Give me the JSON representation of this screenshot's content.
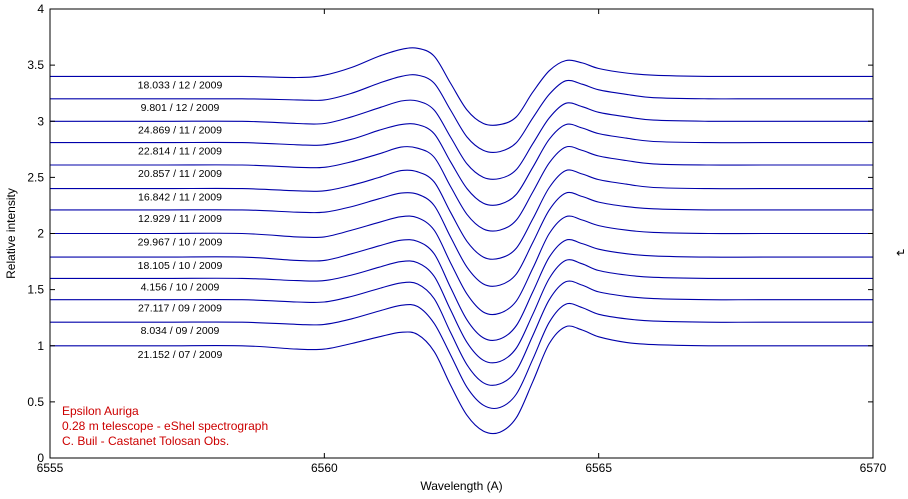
{
  "chart_data": {
    "type": "line",
    "title": "",
    "xlabel": "Wavelength (A)",
    "ylabel": "Relative intensity",
    "xlim": [
      6555,
      6570
    ],
    "ylim": [
      0,
      4
    ],
    "x_ticks": [
      "6555",
      "6560",
      "6565",
      "6570"
    ],
    "y_ticks": [
      "0",
      "0.5",
      "1",
      "1.5",
      "2",
      "2.5",
      "3",
      "3.5",
      "4"
    ],
    "grid": false,
    "line_color": "#0000aa",
    "annotation_color": "#cc0000",
    "annotations": [
      "Epsilon  Auriga",
      "0.28 m telescope - eShel spectrograph",
      "C. Buil - Castanet Tolosan Obs."
    ],
    "side_mark": "↵",
    "x": [
      6555,
      6557,
      6558.5,
      6559.5,
      6560,
      6560.5,
      6561,
      6561.4,
      6561.7,
      6562,
      6562.3,
      6562.6,
      6562.9,
      6563.2,
      6563.5,
      6563.8,
      6564.1,
      6564.4,
      6564.7,
      6565,
      6565.5,
      6566,
      6567,
      6568,
      6570
    ],
    "series": [
      {
        "name": "21.152 / 07 / 2009",
        "values": [
          1.0,
          1.0,
          1.0,
          0.97,
          0.97,
          1.02,
          1.08,
          1.12,
          1.1,
          0.95,
          0.65,
          0.38,
          0.24,
          0.23,
          0.36,
          0.68,
          1.02,
          1.17,
          1.14,
          1.08,
          1.03,
          1.01,
          1.0,
          1.0,
          1.0
        ]
      },
      {
        "name": "8.034 / 09 / 2009",
        "values": [
          1.21,
          1.21,
          1.21,
          1.19,
          1.19,
          1.24,
          1.31,
          1.36,
          1.35,
          1.2,
          0.92,
          0.63,
          0.47,
          0.45,
          0.57,
          0.88,
          1.21,
          1.37,
          1.34,
          1.28,
          1.24,
          1.22,
          1.21,
          1.21,
          1.21
        ]
      },
      {
        "name": "27.117 / 09 / 2009",
        "values": [
          1.41,
          1.41,
          1.41,
          1.39,
          1.39,
          1.44,
          1.51,
          1.56,
          1.55,
          1.42,
          1.12,
          0.83,
          0.67,
          0.66,
          0.78,
          1.09,
          1.41,
          1.57,
          1.54,
          1.48,
          1.44,
          1.42,
          1.41,
          1.41,
          1.41
        ]
      },
      {
        "name": "4.156 / 10 / 2009",
        "values": [
          1.6,
          1.6,
          1.6,
          1.58,
          1.58,
          1.63,
          1.7,
          1.75,
          1.74,
          1.62,
          1.32,
          1.03,
          0.87,
          0.86,
          0.98,
          1.28,
          1.6,
          1.76,
          1.73,
          1.67,
          1.63,
          1.61,
          1.6,
          1.6,
          1.6
        ]
      },
      {
        "name": "18.105 / 10 / 2009",
        "values": [
          1.79,
          1.79,
          1.79,
          1.76,
          1.76,
          1.82,
          1.89,
          1.94,
          1.93,
          1.82,
          1.52,
          1.23,
          1.07,
          1.06,
          1.18,
          1.48,
          1.79,
          1.94,
          1.91,
          1.86,
          1.82,
          1.8,
          1.79,
          1.79,
          1.79
        ]
      },
      {
        "name": "29.967 / 10 / 2009",
        "values": [
          2.0,
          2.0,
          2.0,
          1.97,
          1.97,
          2.03,
          2.1,
          2.15,
          2.14,
          2.03,
          1.74,
          1.46,
          1.3,
          1.29,
          1.4,
          1.69,
          2.0,
          2.15,
          2.12,
          2.07,
          2.03,
          2.01,
          2.0,
          2.0,
          2.0
        ]
      },
      {
        "name": "12.929 / 11 / 2009",
        "values": [
          2.21,
          2.21,
          2.21,
          2.19,
          2.19,
          2.24,
          2.31,
          2.36,
          2.35,
          2.25,
          1.97,
          1.7,
          1.55,
          1.54,
          1.64,
          1.92,
          2.21,
          2.36,
          2.33,
          2.28,
          2.24,
          2.22,
          2.21,
          2.21,
          2.21
        ]
      },
      {
        "name": "16.842 / 11 / 2009",
        "values": [
          2.4,
          2.4,
          2.4,
          2.38,
          2.38,
          2.43,
          2.5,
          2.56,
          2.55,
          2.46,
          2.19,
          1.93,
          1.79,
          1.78,
          1.87,
          2.13,
          2.41,
          2.56,
          2.53,
          2.48,
          2.44,
          2.41,
          2.4,
          2.4,
          2.4
        ]
      },
      {
        "name": "20.857 / 11 / 2009",
        "values": [
          2.61,
          2.61,
          2.61,
          2.59,
          2.59,
          2.64,
          2.71,
          2.77,
          2.76,
          2.68,
          2.42,
          2.17,
          2.04,
          2.03,
          2.12,
          2.37,
          2.63,
          2.77,
          2.74,
          2.69,
          2.65,
          2.62,
          2.61,
          2.61,
          2.61
        ]
      },
      {
        "name": "22.814 / 11 / 2009",
        "values": [
          2.81,
          2.81,
          2.81,
          2.79,
          2.79,
          2.84,
          2.92,
          2.97,
          2.97,
          2.89,
          2.64,
          2.4,
          2.27,
          2.26,
          2.35,
          2.59,
          2.84,
          2.97,
          2.94,
          2.89,
          2.85,
          2.82,
          2.81,
          2.81,
          2.81
        ]
      },
      {
        "name": "24.869 / 11 / 2009",
        "values": [
          3.0,
          3.0,
          3.0,
          2.98,
          2.98,
          3.04,
          3.12,
          3.18,
          3.18,
          3.1,
          2.86,
          2.62,
          2.5,
          2.49,
          2.57,
          2.8,
          3.03,
          3.16,
          3.13,
          3.08,
          3.04,
          3.01,
          3.0,
          3.0,
          3.0
        ]
      },
      {
        "name": "9.801 / 12 / 2009",
        "values": [
          3.2,
          3.2,
          3.2,
          3.19,
          3.19,
          3.25,
          3.34,
          3.4,
          3.41,
          3.34,
          3.1,
          2.86,
          2.74,
          2.73,
          2.81,
          3.03,
          3.24,
          3.36,
          3.33,
          3.28,
          3.24,
          3.21,
          3.2,
          3.2,
          3.2
        ]
      },
      {
        "name": "18.033 / 12 / 2009",
        "values": [
          3.4,
          3.4,
          3.4,
          3.39,
          3.41,
          3.48,
          3.58,
          3.64,
          3.65,
          3.58,
          3.34,
          3.1,
          2.98,
          2.97,
          3.04,
          3.26,
          3.45,
          3.54,
          3.52,
          3.47,
          3.43,
          3.41,
          3.4,
          3.4,
          3.4
        ]
      }
    ]
  }
}
